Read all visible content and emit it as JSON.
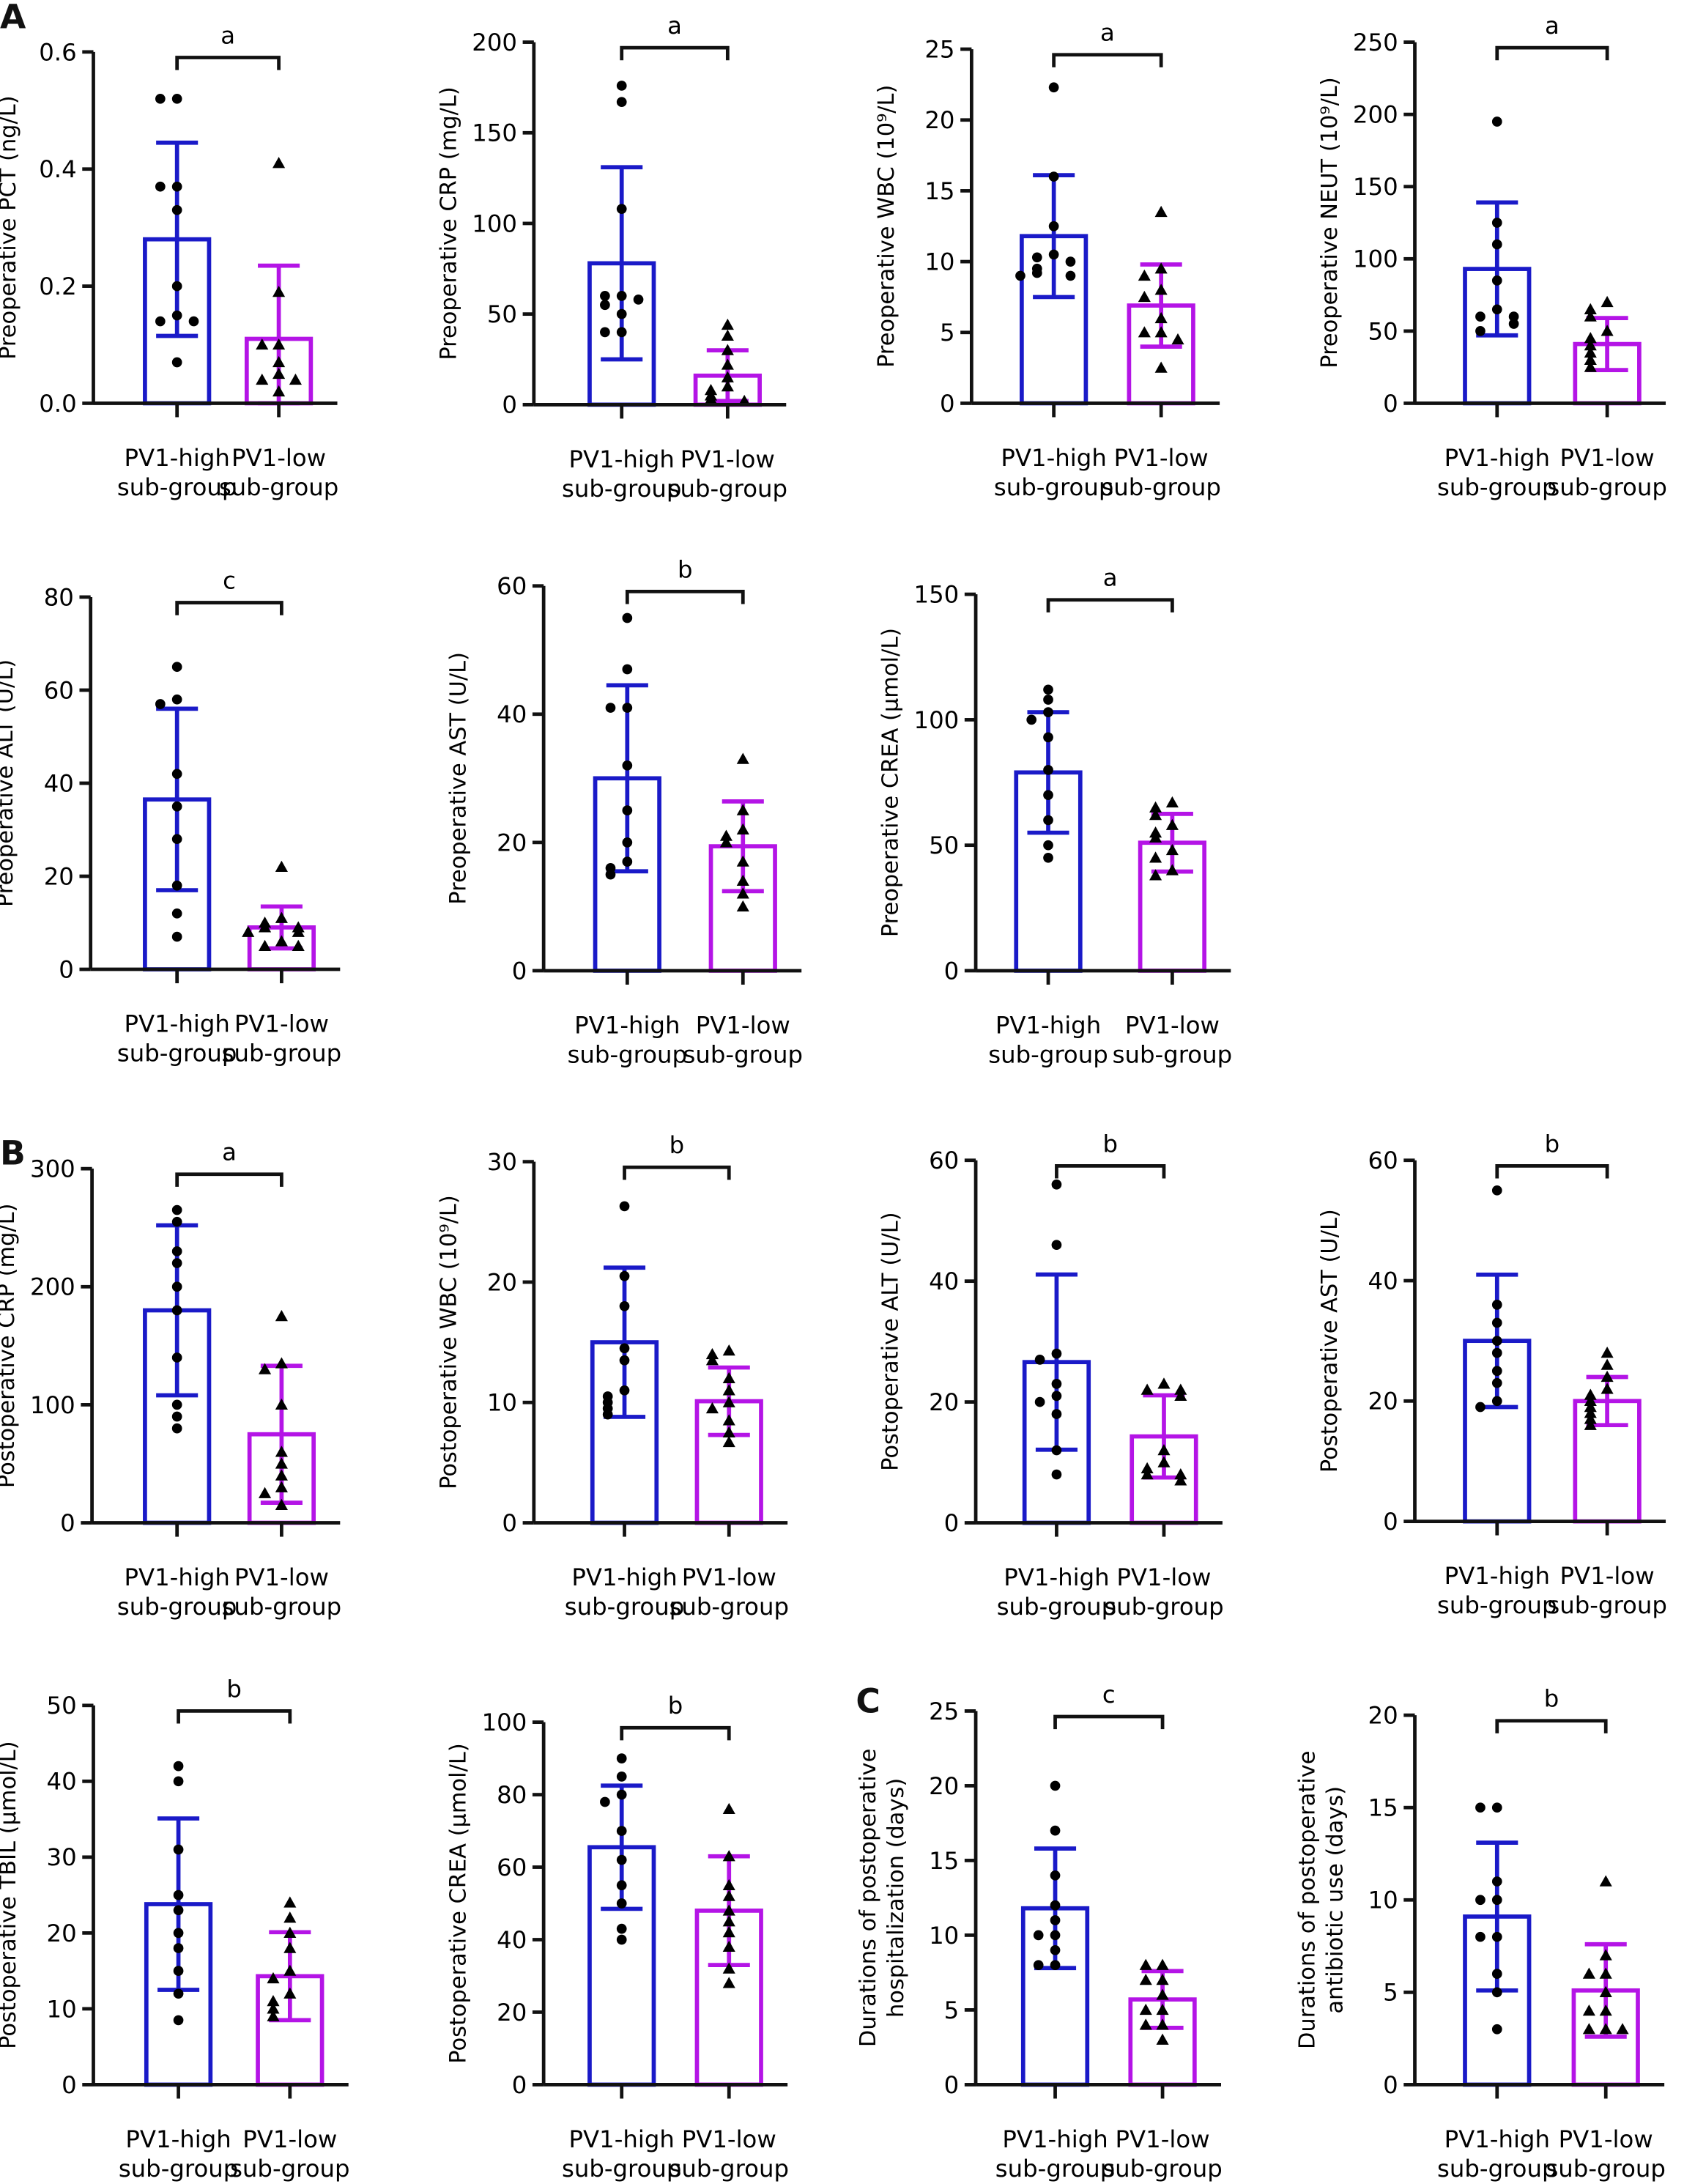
{
  "panels": [
    "A",
    "B",
    "C"
  ],
  "colors": {
    "high": "#1a1ac8",
    "low": "#b414e6",
    "axis": "#111111",
    "points": "#000000"
  },
  "chart_data": [
    {
      "type": "bar",
      "ylabel": [
        "Preoperative PCT (ng/L)"
      ],
      "ylim": [
        0,
        0.6
      ],
      "ticks": [
        "0.0",
        "0.2",
        "0.4",
        "0.6"
      ],
      "tickvals": [
        0,
        0.2,
        0.4,
        0.6
      ],
      "sig": "a",
      "categories": [
        [
          "PV1-high",
          "sub-group"
        ],
        [
          "PV1-low",
          "sub-group"
        ]
      ],
      "series": [
        {
          "name": "PV1-high sub-group",
          "mean": 0.28,
          "sd": 0.165,
          "points": [
            0.52,
            0.52,
            0.37,
            0.37,
            0.33,
            0.2,
            0.15,
            0.14,
            0.14,
            0.07
          ]
        },
        {
          "name": "PV1-low sub-group",
          "mean": 0.11,
          "sd": 0.125,
          "points": [
            0.41,
            0.19,
            0.1,
            0.1,
            0.07,
            0.05,
            0.04,
            0.04,
            0.02
          ]
        }
      ]
    },
    {
      "type": "bar",
      "ylabel": [
        "Preoperative CRP (mg/L)"
      ],
      "ylim": [
        0,
        200
      ],
      "ticks": [
        "0",
        "50",
        "100",
        "150",
        "200"
      ],
      "tickvals": [
        0,
        50,
        100,
        150,
        200
      ],
      "sig": "a",
      "categories": [
        [
          "PV1-high",
          "sub-group"
        ],
        [
          "PV1-low",
          "sub-group"
        ]
      ],
      "series": [
        {
          "name": "PV1-high sub-group",
          "mean": 78,
          "sd": 53,
          "points": [
            176,
            167,
            108,
            60,
            60,
            58,
            55,
            50,
            40,
            40
          ]
        },
        {
          "name": "PV1-low sub-group",
          "mean": 16,
          "sd": 14,
          "points": [
            44,
            38,
            30,
            22,
            15,
            10,
            8,
            5,
            3,
            2
          ]
        }
      ]
    },
    {
      "type": "bar",
      "ylabel": [
        "Preoperative WBC (10⁹/L)"
      ],
      "ylim": [
        0,
        25
      ],
      "ticks": [
        "0",
        "5",
        "10",
        "15",
        "20",
        "25"
      ],
      "tickvals": [
        0,
        5,
        10,
        15,
        20,
        25
      ],
      "sig": "a",
      "categories": [
        [
          "PV1-high",
          "sub-group"
        ],
        [
          "PV1-low",
          "sub-group"
        ]
      ],
      "series": [
        {
          "name": "PV1-high sub-group",
          "mean": 11.8,
          "sd": 4.3,
          "points": [
            22.3,
            16,
            12.5,
            10.5,
            10.3,
            10,
            9.5,
            9.2,
            9,
            9
          ]
        },
        {
          "name": "PV1-low sub-group",
          "mean": 6.9,
          "sd": 2.9,
          "points": [
            13.5,
            9.5,
            9,
            8,
            7.5,
            6,
            5,
            5,
            4.5,
            2.5
          ]
        }
      ]
    },
    {
      "type": "bar",
      "ylabel": [
        "Preoperative NEUT (10⁹/L)"
      ],
      "ylim": [
        0,
        250
      ],
      "ticks": [
        "0",
        "50",
        "100",
        "150",
        "200",
        "250"
      ],
      "tickvals": [
        0,
        50,
        100,
        150,
        200,
        250
      ],
      "sig": "a",
      "categories": [
        [
          "PV1-high",
          "sub-group"
        ],
        [
          "PV1-low",
          "sub-group"
        ]
      ],
      "series": [
        {
          "name": "PV1-high sub-group",
          "mean": 93,
          "sd": 46,
          "points": [
            195,
            125,
            110,
            85,
            65,
            60,
            60,
            55,
            50
          ]
        },
        {
          "name": "PV1-low sub-group",
          "mean": 41,
          "sd": 18,
          "points": [
            70,
            65,
            60,
            50,
            45,
            40,
            35,
            30,
            25
          ]
        }
      ]
    },
    {
      "type": "bar",
      "ylabel": [
        "Preoperative ALT (U/L)"
      ],
      "ylim": [
        0,
        80
      ],
      "ticks": [
        "0",
        "20",
        "40",
        "60",
        "80"
      ],
      "tickvals": [
        0,
        20,
        40,
        60,
        80
      ],
      "sig": "c",
      "categories": [
        [
          "PV1-high",
          "sub-group"
        ],
        [
          "PV1-low",
          "sub-group"
        ]
      ],
      "series": [
        {
          "name": "PV1-high sub-group",
          "mean": 36.5,
          "sd": 19.5,
          "points": [
            65,
            58,
            57,
            42,
            35,
            28,
            18,
            12,
            7
          ]
        },
        {
          "name": "PV1-low sub-group",
          "mean": 9,
          "sd": 4.5,
          "points": [
            22,
            11,
            10,
            9,
            9,
            8,
            8,
            6,
            5,
            5
          ]
        }
      ]
    },
    {
      "type": "bar",
      "ylabel": [
        "Preoperative AST (U/L)"
      ],
      "ylim": [
        0,
        60
      ],
      "ticks": [
        "0",
        "20",
        "40",
        "60"
      ],
      "tickvals": [
        0,
        20,
        40,
        60
      ],
      "sig": "b",
      "categories": [
        [
          "PV1-high",
          "sub-group"
        ],
        [
          "PV1-low",
          "sub-group"
        ]
      ],
      "series": [
        {
          "name": "PV1-high sub-group",
          "mean": 30,
          "sd": 14.5,
          "points": [
            55,
            47,
            41,
            41,
            32,
            25,
            20,
            17,
            16,
            15
          ]
        },
        {
          "name": "PV1-low sub-group",
          "mean": 19.4,
          "sd": 7,
          "points": [
            33,
            25,
            22,
            21,
            20,
            17,
            14,
            12,
            10
          ]
        }
      ]
    },
    {
      "type": "bar",
      "ylabel": [
        "Preoperative CREA (μmol/L)"
      ],
      "ylim": [
        0,
        150
      ],
      "ticks": [
        "0",
        "50",
        "100",
        "150"
      ],
      "tickvals": [
        0,
        50,
        100,
        150
      ],
      "sig": "a",
      "categories": [
        [
          "PV1-high",
          "sub-group"
        ],
        [
          "PV1-low",
          "sub-group"
        ]
      ],
      "series": [
        {
          "name": "PV1-high sub-group",
          "mean": 79,
          "sd": 24,
          "points": [
            112,
            108,
            103,
            100,
            93,
            80,
            70,
            60,
            50,
            45
          ]
        },
        {
          "name": "PV1-low sub-group",
          "mean": 51,
          "sd": 11.5,
          "points": [
            67,
            65,
            62,
            58,
            55,
            53,
            48,
            45,
            40,
            38
          ]
        }
      ]
    },
    {
      "type": "bar",
      "ylabel": [
        "Postoperative CRP (mg/L)"
      ],
      "ylim": [
        0,
        300
      ],
      "ticks": [
        "0",
        "100",
        "200",
        "300"
      ],
      "tickvals": [
        0,
        100,
        200,
        300
      ],
      "sig": "a",
      "categories": [
        [
          "PV1-high",
          "sub-group"
        ],
        [
          "PV1-low",
          "sub-group"
        ]
      ],
      "series": [
        {
          "name": "PV1-high sub-group",
          "mean": 180,
          "sd": 72,
          "points": [
            265,
            255,
            230,
            220,
            200,
            180,
            140,
            100,
            90,
            80
          ]
        },
        {
          "name": "PV1-low sub-group",
          "mean": 75,
          "sd": 58,
          "points": [
            175,
            135,
            130,
            100,
            60,
            50,
            40,
            30,
            25,
            15
          ]
        }
      ]
    },
    {
      "type": "bar",
      "ylabel": [
        "Postoperative WBC (10⁹/L)"
      ],
      "ylim": [
        0,
        30
      ],
      "ticks": [
        "0",
        "10",
        "20",
        "30"
      ],
      "tickvals": [
        0,
        10,
        20,
        30
      ],
      "sig": "b",
      "categories": [
        [
          "PV1-high",
          "sub-group"
        ],
        [
          "PV1-low",
          "sub-group"
        ]
      ],
      "series": [
        {
          "name": "PV1-high sub-group",
          "mean": 15,
          "sd": 6.2,
          "points": [
            26.3,
            20.5,
            18,
            14.5,
            13.5,
            11,
            10.5,
            10,
            9.5,
            9
          ]
        },
        {
          "name": "PV1-low sub-group",
          "mean": 10.1,
          "sd": 2.8,
          "points": [
            14.3,
            14,
            13.5,
            12,
            11,
            10,
            9.5,
            8.5,
            7.5,
            6.7
          ]
        }
      ]
    },
    {
      "type": "bar",
      "ylabel": [
        "Postoperative ALT (U/L)"
      ],
      "ylim": [
        0,
        60
      ],
      "ticks": [
        "0",
        "20",
        "40",
        "60"
      ],
      "tickvals": [
        0,
        20,
        40,
        60
      ],
      "sig": "b",
      "categories": [
        [
          "PV1-high",
          "sub-group"
        ],
        [
          "PV1-low",
          "sub-group"
        ]
      ],
      "series": [
        {
          "name": "PV1-high sub-group",
          "mean": 26.6,
          "sd": 14.5,
          "points": [
            56,
            46,
            28,
            27,
            23,
            21,
            20,
            18,
            12,
            8
          ]
        },
        {
          "name": "PV1-low sub-group",
          "mean": 14.3,
          "sd": 6.8,
          "points": [
            23,
            22,
            22,
            21,
            12,
            10,
            9,
            8,
            8,
            7
          ]
        }
      ]
    },
    {
      "type": "bar",
      "ylabel": [
        "Postoperative AST (U/L)"
      ],
      "ylim": [
        0,
        60
      ],
      "ticks": [
        "0",
        "20",
        "40",
        "60"
      ],
      "tickvals": [
        0,
        20,
        40,
        60
      ],
      "sig": "b",
      "categories": [
        [
          "PV1-high",
          "sub-group"
        ],
        [
          "PV1-low",
          "sub-group"
        ]
      ],
      "series": [
        {
          "name": "PV1-high sub-group",
          "mean": 30,
          "sd": 11,
          "points": [
            55,
            36,
            33,
            30,
            28,
            25,
            23,
            20,
            19
          ]
        },
        {
          "name": "PV1-low sub-group",
          "mean": 20,
          "sd": 4,
          "points": [
            28,
            26,
            24,
            22,
            21,
            20,
            19,
            18,
            17,
            16
          ]
        }
      ]
    },
    {
      "type": "bar",
      "ylabel": [
        "Postoperative TBIL (μmol/L)"
      ],
      "ylim": [
        0,
        50
      ],
      "ticks": [
        "0",
        "10",
        "20",
        "30",
        "40",
        "50"
      ],
      "tickvals": [
        0,
        10,
        20,
        30,
        40,
        50
      ],
      "sig": "b",
      "categories": [
        [
          "PV1-high",
          "sub-group"
        ],
        [
          "PV1-low",
          "sub-group"
        ]
      ],
      "series": [
        {
          "name": "PV1-high sub-group",
          "mean": 23.8,
          "sd": 11.3,
          "points": [
            42,
            40,
            31,
            25,
            23,
            20,
            18,
            15,
            12,
            8.5
          ]
        },
        {
          "name": "PV1-low sub-group",
          "mean": 14.3,
          "sd": 5.8,
          "points": [
            24,
            22,
            20,
            18,
            15,
            14,
            12,
            11,
            10,
            9
          ]
        }
      ]
    },
    {
      "type": "bar",
      "ylabel": [
        "Postoperative CREA (μmol/L)"
      ],
      "ylim": [
        0,
        100
      ],
      "ticks": [
        "0",
        "20",
        "40",
        "60",
        "80",
        "100"
      ],
      "tickvals": [
        0,
        20,
        40,
        60,
        80,
        100
      ],
      "sig": "b",
      "categories": [
        [
          "PV1-high",
          "sub-group"
        ],
        [
          "PV1-low",
          "sub-group"
        ]
      ],
      "series": [
        {
          "name": "PV1-high sub-group",
          "mean": 65.5,
          "sd": 17,
          "points": [
            90,
            85,
            80,
            78,
            70,
            62,
            55,
            50,
            43,
            40
          ]
        },
        {
          "name": "PV1-low sub-group",
          "mean": 48,
          "sd": 15,
          "points": [
            76,
            63,
            55,
            52,
            48,
            45,
            42,
            38,
            32,
            28
          ]
        }
      ]
    },
    {
      "type": "bar",
      "ylabel": [
        "Durations of postoperative",
        "hospitalization (days)"
      ],
      "ylim": [
        0,
        25
      ],
      "ticks": [
        "0",
        "5",
        "10",
        "15",
        "20",
        "25"
      ],
      "tickvals": [
        0,
        5,
        10,
        15,
        20,
        25
      ],
      "sig": "c",
      "categories": [
        [
          "PV1-high",
          "sub-group"
        ],
        [
          "PV1-low",
          "sub-group"
        ]
      ],
      "series": [
        {
          "name": "PV1-high sub-group",
          "mean": 11.8,
          "sd": 4,
          "points": [
            20,
            17,
            14,
            12,
            11,
            10,
            10,
            9,
            8,
            8
          ]
        },
        {
          "name": "PV1-low sub-group",
          "mean": 5.7,
          "sd": 1.9,
          "points": [
            8,
            8,
            7,
            7,
            6,
            5,
            5,
            4,
            4,
            3
          ]
        }
      ]
    },
    {
      "type": "bar",
      "ylabel": [
        "Durations of postoperative",
        "antibiotic use (days)"
      ],
      "ylim": [
        0,
        20
      ],
      "ticks": [
        "0",
        "5",
        "10",
        "15",
        "20"
      ],
      "tickvals": [
        0,
        5,
        10,
        15,
        20
      ],
      "sig": "b",
      "categories": [
        [
          "PV1-high",
          "sub-group"
        ],
        [
          "PV1-low",
          "sub-group"
        ]
      ],
      "series": [
        {
          "name": "PV1-high sub-group",
          "mean": 9.1,
          "sd": 4,
          "points": [
            15,
            15,
            11,
            10,
            10,
            8,
            8,
            6,
            5,
            3
          ]
        },
        {
          "name": "PV1-low sub-group",
          "mean": 5.1,
          "sd": 2.5,
          "points": [
            11,
            7,
            6,
            6,
            5,
            4,
            4,
            3,
            3,
            3
          ]
        }
      ]
    }
  ]
}
